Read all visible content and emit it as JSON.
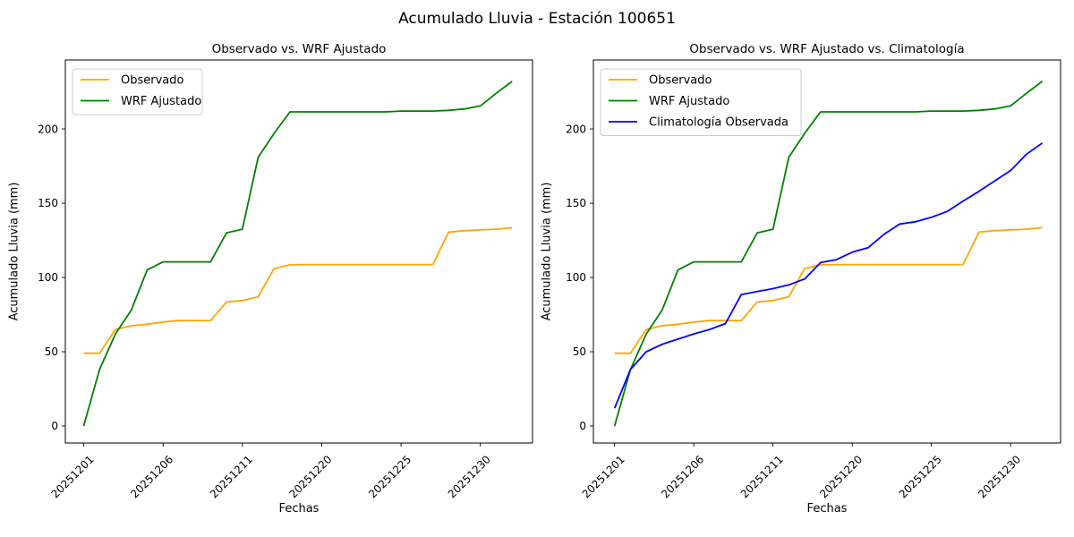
{
  "figure": {
    "title": "Acumulado Lluvia - Estación 100651",
    "background": "#ffffff"
  },
  "chart_data": [
    {
      "type": "line",
      "title": "Observado vs. WRF Ajustado",
      "xlabel": "Fechas",
      "ylabel": "Acumulado Lluvia (mm)",
      "n_points": 28,
      "yticks": [
        0,
        50,
        100,
        150,
        200
      ],
      "ylim": [
        -12,
        246
      ],
      "grid": false,
      "legend_position": "upper-left",
      "xtick_labels": [
        "20251201",
        "20251206",
        "20251211",
        "20251220",
        "20251225",
        "20251230"
      ],
      "xtick_indices": [
        0,
        5,
        10,
        15,
        20,
        25
      ],
      "series": [
        {
          "name": "Observado",
          "color": "#FFA500",
          "values": [
            49,
            49,
            65,
            67.5,
            68.5,
            70,
            71,
            71,
            71,
            83.5,
            84.5,
            87,
            106,
            108.5,
            108.7,
            108.7,
            108.7,
            108.7,
            108.7,
            108.7,
            108.7,
            108.7,
            108.7,
            130.5,
            131.5,
            132,
            132.5,
            133.5
          ]
        },
        {
          "name": "WRF Ajustado",
          "color": "#008000",
          "values": [
            0,
            38,
            62,
            78,
            105,
            110.5,
            110.5,
            110.5,
            110.5,
            130,
            132.5,
            181,
            197,
            211.5,
            211.5,
            211.5,
            211.5,
            211.5,
            211.5,
            211.5,
            212,
            212,
            212,
            212.5,
            213.5,
            215.5,
            224,
            232
          ]
        }
      ]
    },
    {
      "type": "line",
      "title": "Observado vs. WRF Ajustado vs. Climatología",
      "xlabel": "Fechas",
      "ylabel": "Acumulado Lluvia (mm)",
      "n_points": 28,
      "yticks": [
        0,
        50,
        100,
        150,
        200
      ],
      "ylim": [
        -12,
        246
      ],
      "grid": false,
      "legend_position": "upper-left",
      "xtick_labels": [
        "20251201",
        "20251206",
        "20251211",
        "20251220",
        "20251225",
        "20251230"
      ],
      "xtick_indices": [
        0,
        5,
        10,
        15,
        20,
        25
      ],
      "series": [
        {
          "name": "Observado",
          "color": "#FFA500",
          "values": [
            49,
            49,
            65,
            67.5,
            68.5,
            70,
            71,
            71,
            71,
            83.5,
            84.5,
            87,
            106,
            108.5,
            108.7,
            108.7,
            108.7,
            108.7,
            108.7,
            108.7,
            108.7,
            108.7,
            108.7,
            130.5,
            131.5,
            132,
            132.5,
            133.5
          ]
        },
        {
          "name": "WRF Ajustado",
          "color": "#008000",
          "values": [
            0,
            38,
            62,
            78,
            105,
            110.5,
            110.5,
            110.5,
            110.5,
            130,
            132.5,
            181,
            197,
            211.5,
            211.5,
            211.5,
            211.5,
            211.5,
            211.5,
            211.5,
            212,
            212,
            212,
            212.5,
            213.5,
            215.5,
            224,
            232
          ]
        },
        {
          "name": "Climatología Observada",
          "color": "#0000FF",
          "values": [
            12,
            38,
            50,
            55,
            58.5,
            62,
            65,
            69,
            88.5,
            90.5,
            92.5,
            95,
            99,
            110,
            112,
            117,
            120,
            129,
            136,
            137.5,
            140.5,
            144.5,
            151.5,
            158,
            165,
            172,
            183,
            190.5
          ]
        }
      ]
    }
  ]
}
